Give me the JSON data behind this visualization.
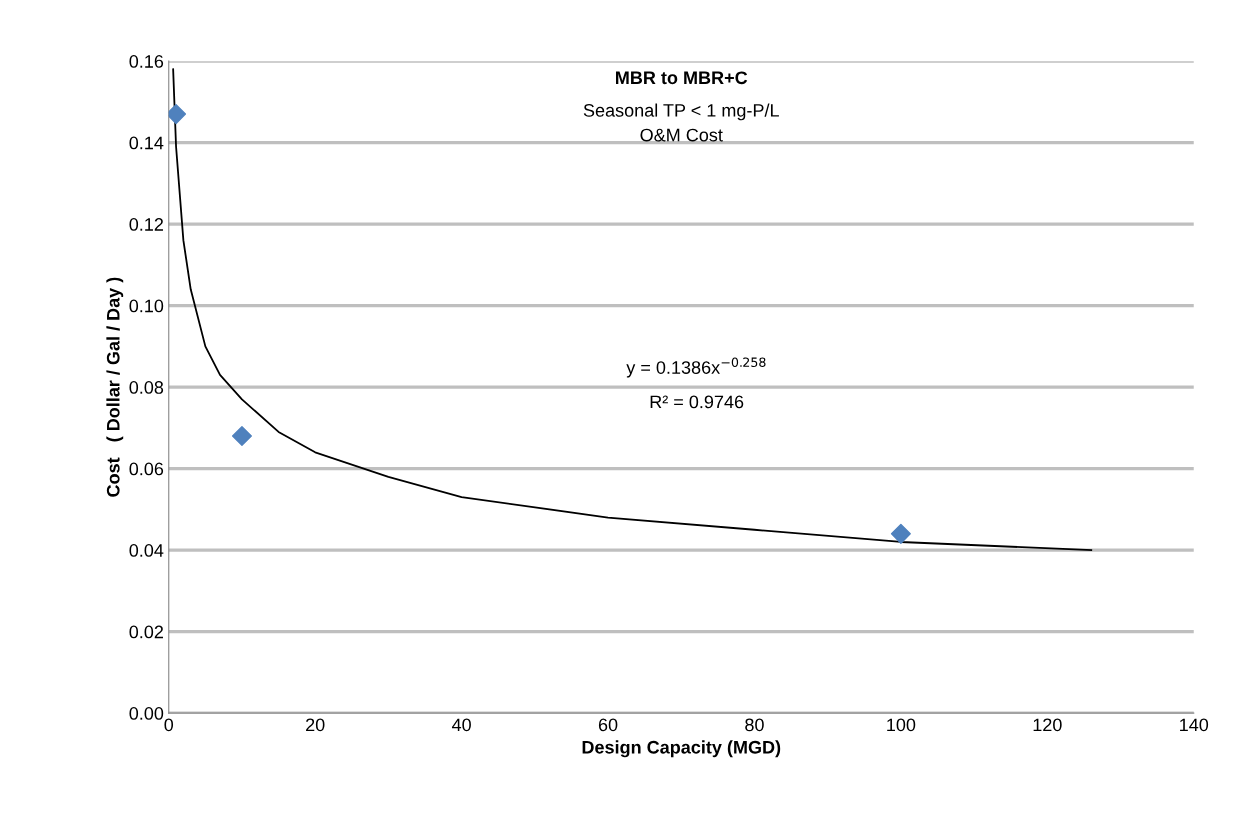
{
  "chart_data": {
    "type": "scatter",
    "title": "MBR to MBR+C",
    "subtitle": "Seasonal TP < 1 mg-P/L\nO&M Cost",
    "xlabel": "Design Capacity (MGD)",
    "ylabel": "Cost   ( Dollar / Gal / Day )",
    "series": [
      {
        "color": "#4f81bd",
        "marker": "diamond",
        "x": [
          1,
          10,
          100
        ],
        "values": [
          0.147,
          0.068,
          0.044
        ]
      },
      {
        "type": "line",
        "color": "#000000",
        "marker": "none",
        "x": [
          0.6,
          1,
          2,
          3,
          5,
          7,
          10,
          15,
          20,
          30,
          40,
          60,
          80,
          100,
          126
        ],
        "values": [
          0.158,
          0.139,
          0.116,
          0.104,
          0.09,
          0.083,
          0.077,
          0.069,
          0.064,
          0.058,
          0.053,
          0.048,
          0.045,
          0.042,
          0.04
        ]
      }
    ],
    "annotations": [
      "y = 0.1386x$^{−0.258}$",
      "R² = 0.9746"
    ],
    "xlim": [
      0,
      140
    ],
    "xticks": [
      0,
      20,
      40,
      60,
      80,
      100,
      120,
      140
    ],
    "ylim": [
      0,
      0.16
    ],
    "yticks": [
      {
        "value": 0,
        "label": "0.00"
      },
      {
        "value": 0.02,
        "label": "0.02"
      },
      {
        "value": 0.04,
        "label": "0.04"
      },
      {
        "value": 0.06,
        "label": "0.06"
      },
      {
        "value": 0.08,
        "label": "0.08"
      },
      {
        "value": 0.1,
        "label": "0.10"
      },
      {
        "value": 0.12,
        "label": "0.12"
      },
      {
        "value": 0.14,
        "label": "0.14"
      },
      {
        "value": 0.16,
        "label": "0.16"
      }
    ],
    "grid": "y",
    "legend": false
  }
}
